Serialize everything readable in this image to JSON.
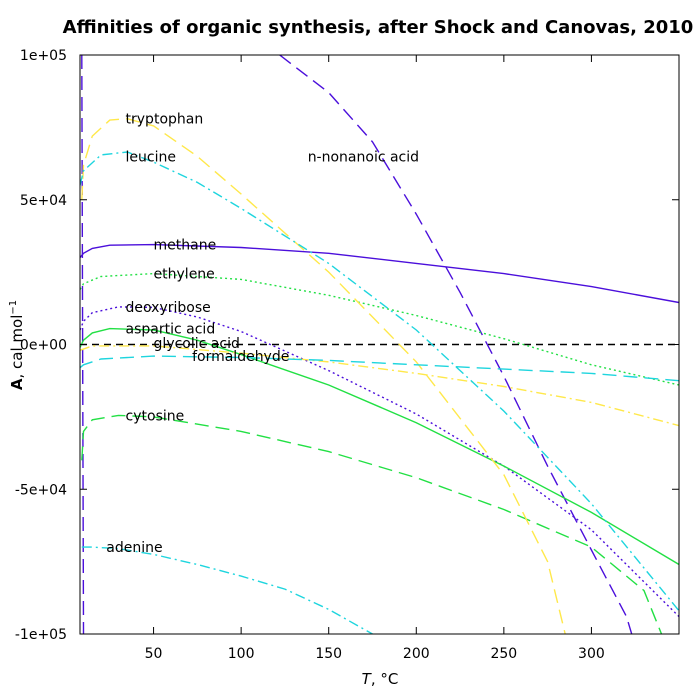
{
  "chart_data": {
    "type": "line",
    "title": "Affinities of organic synthesis, after Shock and Canovas, 2010",
    "xlabel": {
      "var": "T",
      "unit": ", °C"
    },
    "ylabel": {
      "var": "A",
      "unit": ", cal mol",
      "exp": "−1"
    },
    "xlim": [
      8,
      350
    ],
    "ylim": [
      -100000,
      100000
    ],
    "x_ticks": [
      50,
      100,
      150,
      200,
      250,
      300
    ],
    "y_ticks": [
      {
        "v": -100000,
        "label": "-1e+05"
      },
      {
        "v": -50000,
        "label": "-5e+04"
      },
      {
        "v": 0,
        "label": "0e+00"
      },
      {
        "v": 50000,
        "label": "5e+04"
      },
      {
        "v": 100000,
        "label": "1e+05"
      }
    ],
    "grid": false,
    "zero_line": true,
    "series": [
      {
        "name": "methane",
        "color": "#4B0FDB",
        "dash": "solid",
        "label_at": [
          50,
          34500
        ],
        "points": [
          [
            8,
            30000
          ],
          [
            10,
            31500
          ],
          [
            15,
            33200
          ],
          [
            25,
            34300
          ],
          [
            50,
            34500
          ],
          [
            100,
            33500
          ],
          [
            150,
            31500
          ],
          [
            200,
            28000
          ],
          [
            250,
            24500
          ],
          [
            300,
            20000
          ],
          [
            350,
            14500
          ]
        ]
      },
      {
        "name": "n-nonanoic acid",
        "color": "#4B0FDB",
        "dash": "longdash",
        "label_at": [
          138,
          65000
        ],
        "points": [
          [
            9,
            100000
          ],
          [
            9.3,
            40000
          ],
          [
            9.6,
            -20000
          ],
          [
            10,
            -100000
          ]
        ]
      },
      {
        "name": "n-nonanoic acid 2",
        "color": "#4B0FDB",
        "dash": "longdash",
        "points": [
          [
            122,
            100000
          ],
          [
            150,
            87000
          ],
          [
            175,
            70000
          ],
          [
            200,
            45000
          ],
          [
            225,
            18000
          ],
          [
            250,
            -11000
          ],
          [
            275,
            -42000
          ],
          [
            300,
            -71000
          ],
          [
            320,
            -94000
          ],
          [
            323,
            -100000
          ]
        ]
      },
      {
        "name": "deoxyribose",
        "color": "#4B0FDB",
        "dash": "dotted",
        "label_at": [
          34,
          13000
        ],
        "points": [
          [
            8,
            5000
          ],
          [
            10,
            8000
          ],
          [
            15,
            11000
          ],
          [
            30,
            13000
          ],
          [
            50,
            12800
          ],
          [
            75,
            9500
          ],
          [
            100,
            4500
          ],
          [
            150,
            -9000
          ],
          [
            200,
            -24000
          ],
          [
            250,
            -42000
          ],
          [
            300,
            -64000
          ],
          [
            330,
            -82000
          ],
          [
            350,
            -94000
          ]
        ]
      },
      {
        "name": "ethylene",
        "color": "#22E044",
        "dash": "dotted",
        "label_at": [
          50,
          24500
        ],
        "points": [
          [
            8,
            19000
          ],
          [
            10,
            21000
          ],
          [
            20,
            23500
          ],
          [
            50,
            24500
          ],
          [
            100,
            22500
          ],
          [
            150,
            17000
          ],
          [
            200,
            10000
          ],
          [
            250,
            2000
          ],
          [
            300,
            -7000
          ],
          [
            350,
            -14000
          ]
        ]
      },
      {
        "name": "aspartic acid",
        "color": "#22E044",
        "dash": "solid",
        "label_at": [
          34,
          5500
        ],
        "points": [
          [
            8,
            -1000
          ],
          [
            10,
            1500
          ],
          [
            15,
            4000
          ],
          [
            25,
            5500
          ],
          [
            50,
            5000
          ],
          [
            75,
            1500
          ],
          [
            100,
            -3500
          ],
          [
            150,
            -14000
          ],
          [
            200,
            -27000
          ],
          [
            250,
            -42000
          ],
          [
            300,
            -58000
          ],
          [
            350,
            -76000
          ]
        ]
      },
      {
        "name": "cytosine",
        "color": "#22E044",
        "dash": "longdash",
        "label_at": [
          34,
          -24500
        ],
        "points": [
          [
            9,
            -40000
          ],
          [
            10,
            -30000
          ],
          [
            15,
            -26000
          ],
          [
            30,
            -24500
          ],
          [
            50,
            -25000
          ],
          [
            100,
            -30000
          ],
          [
            150,
            -37000
          ],
          [
            200,
            -46000
          ],
          [
            250,
            -57000
          ],
          [
            300,
            -70000
          ],
          [
            330,
            -85000
          ],
          [
            340,
            -100000
          ]
        ]
      },
      {
        "name": "tryptophan",
        "color": "#FFE84A",
        "dash": "longdash",
        "label_at": [
          34,
          78000
        ],
        "points": [
          [
            9,
            50000
          ],
          [
            10,
            62000
          ],
          [
            15,
            72000
          ],
          [
            25,
            77500
          ],
          [
            35,
            78000
          ],
          [
            50,
            75500
          ],
          [
            75,
            65000
          ],
          [
            100,
            52000
          ],
          [
            150,
            25000
          ],
          [
            200,
            -6000
          ],
          [
            250,
            -45000
          ],
          [
            275,
            -75000
          ],
          [
            285,
            -100000
          ]
        ]
      },
      {
        "name": "glycolic acid",
        "color": "#FFE84A",
        "dash": "dotdash",
        "label_at": [
          50,
          500
        ],
        "points": [
          [
            8,
            -2000
          ],
          [
            15,
            -500
          ],
          [
            50,
            -500
          ],
          [
            100,
            -3000
          ],
          [
            150,
            -6000
          ],
          [
            200,
            -10000
          ],
          [
            250,
            -14500
          ],
          [
            300,
            -20000
          ],
          [
            350,
            -28000
          ]
        ]
      },
      {
        "name": "leucine",
        "color": "#1ED5DE",
        "dash": "dotdash",
        "label_at": [
          34,
          65000
        ],
        "points": [
          [
            8,
            55000
          ],
          [
            10,
            60000
          ],
          [
            20,
            65500
          ],
          [
            35,
            66500
          ],
          [
            50,
            63000
          ],
          [
            75,
            56000
          ],
          [
            100,
            47000
          ],
          [
            150,
            28000
          ],
          [
            200,
            5000
          ],
          [
            250,
            -23000
          ],
          [
            300,
            -55000
          ],
          [
            350,
            -92000
          ]
        ]
      },
      {
        "name": "formaldehyde",
        "color": "#1ED5DE",
        "dash": "longdash",
        "label_at": [
          72,
          -4000
        ],
        "points": [
          [
            8,
            -8000
          ],
          [
            10,
            -7000
          ],
          [
            20,
            -5000
          ],
          [
            50,
            -4000
          ],
          [
            100,
            -4500
          ],
          [
            150,
            -5500
          ],
          [
            200,
            -7000
          ],
          [
            250,
            -8500
          ],
          [
            300,
            -10000
          ],
          [
            350,
            -12500
          ]
        ]
      },
      {
        "name": "adenine",
        "color": "#1ED5DE",
        "dash": "dotdash",
        "label_at": [
          23,
          -70000
        ],
        "points": [
          [
            9,
            -70000
          ],
          [
            15,
            -70000
          ],
          [
            30,
            -70500
          ],
          [
            50,
            -72500
          ],
          [
            75,
            -76000
          ],
          [
            100,
            -80000
          ],
          [
            125,
            -84500
          ],
          [
            150,
            -91500
          ],
          [
            175,
            -100000
          ]
        ]
      }
    ]
  }
}
